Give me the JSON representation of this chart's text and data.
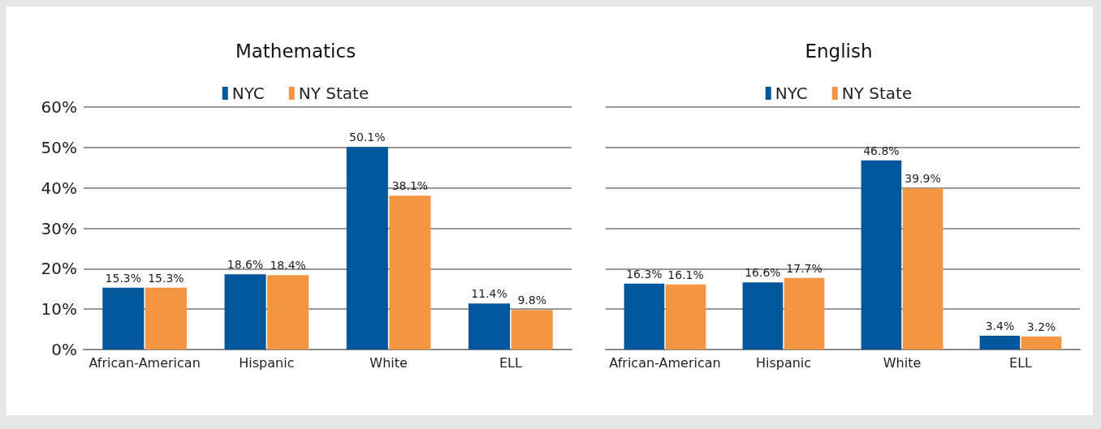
{
  "chart_data": [
    {
      "type": "bar",
      "title": "Mathematics",
      "categories": [
        "African-American",
        "Hispanic",
        "White",
        "ELL"
      ],
      "series": [
        {
          "name": "NYC",
          "color": "#00579b",
          "values": [
            15.3,
            18.6,
            50.1,
            11.4
          ],
          "value_labels": [
            "15.3%",
            "18.6%",
            "50.1%",
            "11.4%"
          ]
        },
        {
          "name": "NY State",
          "color": "#f39542",
          "values": [
            15.3,
            18.4,
            38.1,
            9.8
          ],
          "value_labels": [
            "15.3%",
            "18.4%",
            "38.1%",
            "9.8%"
          ]
        }
      ],
      "ylim": [
        0,
        60
      ],
      "yticks": [
        {
          "value": 0,
          "label": "0%"
        },
        {
          "value": 10,
          "label": "10%"
        },
        {
          "value": 20,
          "label": "20%"
        },
        {
          "value": 30,
          "label": "30%"
        },
        {
          "value": 40,
          "label": "40%"
        },
        {
          "value": 50,
          "label": "50%"
        },
        {
          "value": 60,
          "label": "60%"
        }
      ],
      "grid": "y",
      "legend": "top"
    },
    {
      "type": "bar",
      "title": "English",
      "categories": [
        "African-American",
        "Hispanic",
        "White",
        "ELL"
      ],
      "series": [
        {
          "name": "NYC",
          "color": "#00579b",
          "values": [
            16.3,
            16.6,
            46.8,
            3.4
          ],
          "value_labels": [
            "16.3%",
            "16.6%",
            "46.8%",
            "3.4%"
          ]
        },
        {
          "name": "NY State",
          "color": "#f39542",
          "values": [
            16.1,
            17.7,
            39.9,
            3.2
          ],
          "value_labels": [
            "16.1%",
            "17.7%",
            "39.9%",
            "3.2%"
          ]
        }
      ],
      "ylim": [
        0,
        60
      ],
      "yticks": [
        0,
        10,
        20,
        30,
        40,
        50,
        60
      ],
      "grid": "y",
      "legend": "top",
      "tick_labels": "x"
    }
  ]
}
